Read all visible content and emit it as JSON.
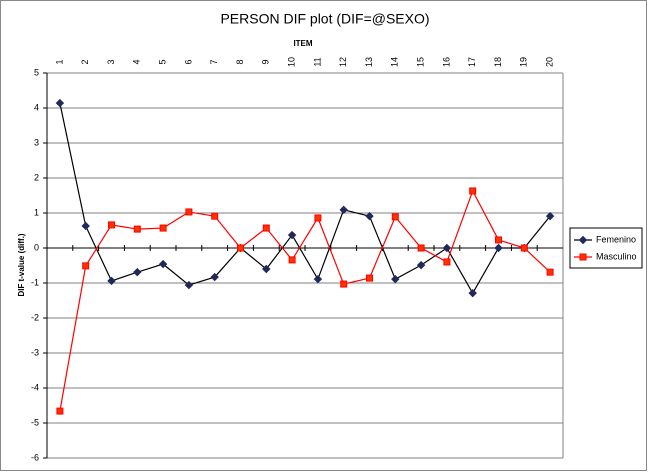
{
  "chart_data": {
    "type": "line",
    "title": "PERSON DIF plot (DIF=@SEXO)",
    "x_label": "ITEM",
    "y_label": "DIF t-value (diff.)",
    "categories": [
      "1",
      "2",
      "3",
      "4",
      "5",
      "6",
      "7",
      "8",
      "9",
      "10",
      "11",
      "12",
      "13",
      "14",
      "15",
      "16",
      "17",
      "18",
      "19",
      "20"
    ],
    "series": [
      {
        "name": "Femenino",
        "color": "#000000",
        "marker": "diamond",
        "marker_color": "#1f2a5a",
        "values": [
          4.14,
          0.63,
          -0.94,
          -0.69,
          -0.46,
          -1.06,
          -0.83,
          0,
          -0.6,
          0.37,
          -0.89,
          1.09,
          0.91,
          -0.89,
          -0.49,
          0,
          -1.29,
          0,
          0,
          0.91
        ]
      },
      {
        "name": "Masculino",
        "color": "#ff0000",
        "marker": "square",
        "marker_color": "#ff3300",
        "values": [
          -4.66,
          -0.51,
          0.66,
          0.54,
          0.57,
          1.03,
          0.91,
          0,
          0.57,
          -0.34,
          0.86,
          -1.03,
          -0.86,
          0.89,
          0,
          -0.4,
          1.63,
          0.23,
          0,
          -0.69
        ]
      }
    ],
    "ylim": [
      -6,
      5
    ],
    "yticks": [
      -6,
      -5,
      -4,
      -3,
      -2,
      -1,
      0,
      1,
      2,
      3,
      4,
      5
    ],
    "grid": true,
    "legend": "right"
  }
}
